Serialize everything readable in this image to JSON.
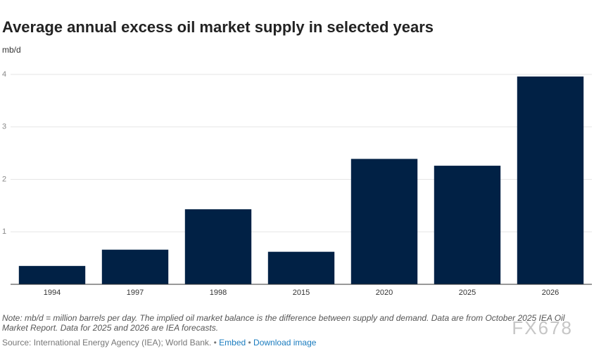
{
  "chart_data": {
    "type": "bar",
    "title": "Average annual excess oil market supply in selected years",
    "y_label": "mb/d",
    "categories": [
      "1994",
      "1997",
      "1998",
      "2015",
      "2020",
      "2025",
      "2026"
    ],
    "values": [
      0.35,
      0.66,
      1.43,
      0.62,
      2.39,
      2.26,
      3.96
    ],
    "color": "#012145",
    "ylim": [
      0,
      4
    ],
    "yticks": [
      1,
      2,
      3,
      4
    ],
    "grid": true
  },
  "footer": {
    "note": "Note: mb/d = million barrels per day. The implied oil market balance is the difference between supply and demand. Data are from October 2025 IEA Oil Market Report. Data for 2025 and 2026 are IEA forecasts.",
    "source": "Source: International Energy Agency (IEA); World Bank.",
    "embed": "Embed",
    "download": "Download image",
    "watermark": "FX678"
  }
}
